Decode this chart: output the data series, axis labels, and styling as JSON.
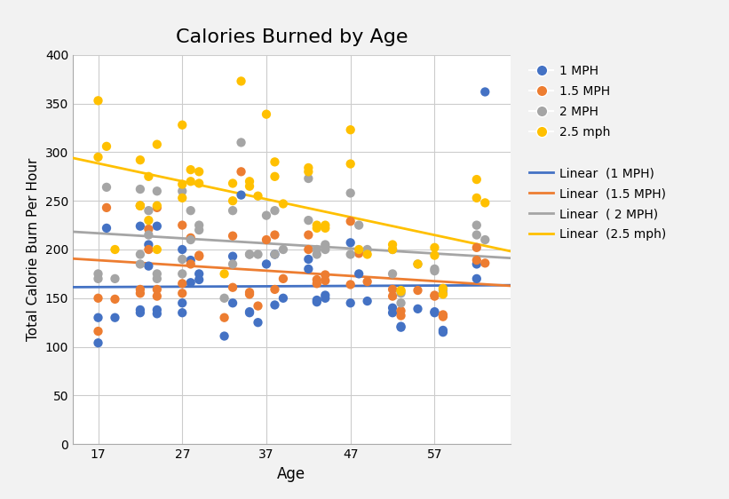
{
  "title": "Calories Burned by Age",
  "xlabel": "Age",
  "ylabel": "Total Calorie Burn Per Hour",
  "xlim": [
    14,
    66
  ],
  "ylim": [
    0,
    400
  ],
  "xticks": [
    17,
    27,
    37,
    47,
    57
  ],
  "yticks": [
    0,
    50,
    100,
    150,
    200,
    250,
    300,
    350,
    400
  ],
  "colors": {
    "1mph": "#4472C4",
    "1.5mph": "#ED7D31",
    "2mph": "#A5A5A5",
    "2.5mph": "#FFC000"
  },
  "data_1mph": {
    "age": [
      17,
      17,
      18,
      19,
      22,
      22,
      22,
      23,
      23,
      24,
      24,
      24,
      27,
      27,
      27,
      28,
      28,
      29,
      29,
      32,
      33,
      33,
      34,
      35,
      35,
      36,
      37,
      38,
      38,
      39,
      42,
      42,
      43,
      43,
      44,
      44,
      47,
      47,
      48,
      49,
      52,
      52,
      53,
      53,
      55,
      57,
      57,
      58,
      58,
      62,
      62,
      63
    ],
    "cal": [
      130,
      104,
      222,
      130,
      138,
      135,
      224,
      205,
      183,
      224,
      138,
      134,
      200,
      145,
      135,
      189,
      166,
      169,
      175,
      111,
      193,
      145,
      256,
      136,
      135,
      125,
      185,
      143,
      195,
      150,
      190,
      180,
      148,
      146,
      153,
      150,
      145,
      207,
      175,
      147,
      135,
      140,
      120,
      121,
      139,
      135,
      136,
      115,
      117,
      185,
      170,
      362
    ]
  },
  "data_1.5mph": {
    "age": [
      17,
      17,
      18,
      19,
      22,
      22,
      22,
      23,
      23,
      24,
      24,
      24,
      27,
      27,
      27,
      28,
      28,
      29,
      29,
      32,
      33,
      33,
      34,
      35,
      35,
      36,
      37,
      38,
      38,
      39,
      42,
      42,
      43,
      43,
      44,
      44,
      47,
      47,
      48,
      49,
      52,
      52,
      53,
      53,
      55,
      57,
      57,
      58,
      58,
      62,
      62,
      63
    ],
    "cal": [
      150,
      116,
      243,
      149,
      159,
      155,
      245,
      221,
      200,
      243,
      159,
      152,
      225,
      165,
      155,
      212,
      185,
      193,
      194,
      130,
      214,
      161,
      280,
      156,
      154,
      142,
      210,
      159,
      215,
      170,
      215,
      200,
      169,
      165,
      174,
      168,
      164,
      229,
      196,
      167,
      152,
      159,
      137,
      132,
      158,
      152,
      153,
      131,
      133,
      202,
      189,
      186
    ]
  },
  "data_2mph": {
    "age": [
      17,
      17,
      18,
      19,
      22,
      22,
      22,
      23,
      23,
      24,
      24,
      24,
      27,
      27,
      27,
      28,
      28,
      29,
      29,
      32,
      33,
      33,
      34,
      35,
      35,
      36,
      37,
      38,
      38,
      39,
      42,
      42,
      43,
      43,
      44,
      44,
      47,
      47,
      48,
      49,
      52,
      52,
      53,
      53,
      55,
      57,
      57,
      58,
      58,
      62,
      62,
      63
    ],
    "cal": [
      175,
      170,
      264,
      170,
      195,
      185,
      262,
      240,
      215,
      260,
      175,
      170,
      260,
      190,
      175,
      240,
      210,
      220,
      225,
      150,
      240,
      185,
      310,
      195,
      195,
      195,
      235,
      195,
      240,
      200,
      273,
      230,
      200,
      195,
      205,
      200,
      195,
      258,
      225,
      200,
      175,
      200,
      155,
      145,
      185,
      180,
      178,
      155,
      158,
      225,
      215,
      210
    ]
  },
  "data_2.5mph": {
    "age": [
      17,
      17,
      18,
      19,
      22,
      22,
      22,
      23,
      23,
      24,
      24,
      24,
      27,
      27,
      27,
      28,
      28,
      29,
      29,
      32,
      33,
      33,
      34,
      35,
      35,
      36,
      37,
      38,
      38,
      39,
      42,
      42,
      43,
      43,
      44,
      44,
      47,
      47,
      48,
      49,
      52,
      52,
      53,
      53,
      55,
      57,
      57,
      58,
      58,
      62,
      62,
      63
    ],
    "cal": [
      353,
      295,
      306,
      200,
      245,
      245,
      292,
      275,
      230,
      308,
      245,
      200,
      328,
      253,
      267,
      282,
      270,
      268,
      280,
      175,
      268,
      250,
      373,
      265,
      270,
      255,
      339,
      275,
      290,
      247,
      284,
      280,
      225,
      222,
      225,
      222,
      323,
      288,
      200,
      195,
      200,
      205,
      158,
      157,
      185,
      202,
      194,
      160,
      154,
      272,
      253,
      248
    ]
  },
  "legend_labels": [
    "1 MPH",
    "1.5 MPH",
    "2 MPH",
    "2.5 mph"
  ],
  "linear_labels": [
    "Linear  (1 MPH)",
    "Linear  (1.5 MPH)",
    "Linear  ( 2 MPH)",
    "Linear  (2.5 mph)"
  ],
  "figsize": [
    8.21,
    5.62
  ],
  "dpi": 100,
  "title_fontsize": 16,
  "axis_label_fontsize": 12,
  "marker_size": 55,
  "line_width": 2.0,
  "bg_color": "#f2f2f2",
  "plot_bg_color": "#ffffff"
}
